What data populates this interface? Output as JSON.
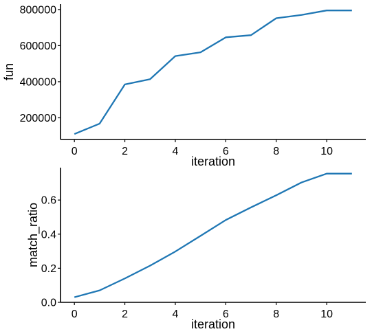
{
  "colors": {
    "series": "#1f77b4",
    "axis": "#000000"
  },
  "chart_data": [
    {
      "type": "line",
      "xlabel": "iteration",
      "ylabel": "fun",
      "xlim": [
        -0.55,
        11.55
      ],
      "ylim": [
        80000,
        830000
      ],
      "xticks": [
        0,
        2,
        4,
        6,
        8,
        10
      ],
      "yticks": [
        200000,
        400000,
        600000,
        800000
      ],
      "grid": false,
      "series": [
        {
          "x": [
            0,
            1,
            2,
            3,
            4,
            5,
            6,
            7,
            8,
            9,
            10,
            11
          ],
          "values": [
            110000,
            168000,
            385000,
            414000,
            542000,
            563000,
            646000,
            658000,
            752000,
            770000,
            795000,
            795000
          ]
        }
      ]
    },
    {
      "type": "line",
      "xlabel": "iteration",
      "ylabel": "match_ratio",
      "xlim": [
        -0.55,
        11.55
      ],
      "ylim": [
        0.0,
        0.79
      ],
      "xticks": [
        0,
        2,
        4,
        6,
        8,
        10
      ],
      "yticks": [
        0.0,
        0.2,
        0.4,
        0.6
      ],
      "grid": false,
      "series": [
        {
          "x": [
            0,
            1,
            2,
            3,
            4,
            5,
            6,
            7,
            8,
            9,
            10,
            11
          ],
          "values": [
            0.03,
            0.07,
            0.14,
            0.215,
            0.298,
            0.39,
            0.483,
            0.557,
            0.628,
            0.703,
            0.755,
            0.755
          ]
        }
      ]
    }
  ]
}
